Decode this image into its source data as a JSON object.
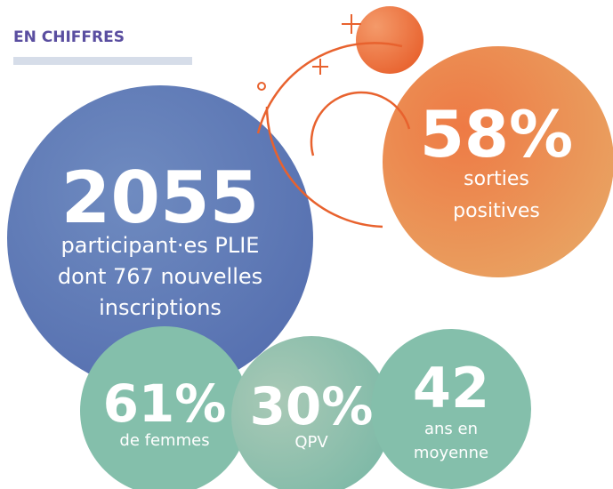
{
  "header": {
    "title": "EN CHIFFRES"
  },
  "stats": [
    {
      "value": "2055",
      "lines": [
        "participant·es PLIE",
        "dont 767 nouvelles",
        "inscriptions"
      ]
    },
    {
      "value": "58%",
      "lines": [
        "sorties",
        "positives"
      ]
    },
    {
      "value": "61%",
      "lines": [
        "de femmes"
      ]
    },
    {
      "value": "30%",
      "lines": [
        "QPV"
      ]
    },
    {
      "value": "42",
      "lines": [
        "ans en",
        "moyenne"
      ]
    }
  ]
}
